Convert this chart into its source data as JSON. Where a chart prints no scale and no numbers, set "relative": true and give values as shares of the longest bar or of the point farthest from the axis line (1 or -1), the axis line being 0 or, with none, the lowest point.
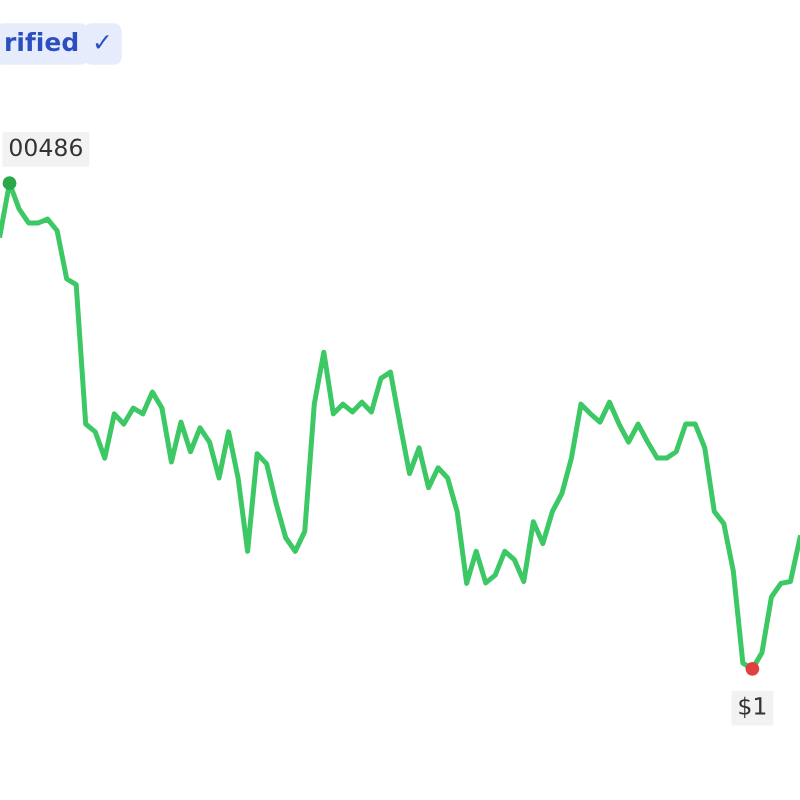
{
  "chart_data": {
    "type": "line",
    "relative": true,
    "categories": [
      null,
      null,
      null,
      null,
      null,
      null,
      null,
      null,
      null,
      null,
      null,
      null,
      null,
      null,
      null,
      null,
      null,
      null,
      null,
      null,
      null,
      null,
      null,
      null,
      null,
      null,
      null,
      null,
      null,
      null,
      null,
      null,
      null,
      null,
      null,
      null,
      null,
      null,
      null,
      null,
      null,
      null,
      null,
      null,
      null,
      null,
      null,
      null,
      null,
      null,
      null,
      null,
      null,
      null,
      null,
      null,
      null,
      null,
      null,
      null,
      null,
      null,
      null,
      null,
      null,
      null,
      null,
      null,
      null,
      null,
      null,
      null,
      null,
      null,
      null,
      null,
      null,
      null,
      null,
      null,
      null,
      null,
      null,
      null,
      null
    ],
    "series": [
      {
        "color": "#3cc864",
        "values": [
          0.893,
          1,
          0.947,
          0.918,
          0.918,
          0.926,
          0.902,
          0.803,
          0.791,
          0.504,
          0.488,
          0.434,
          0.525,
          0.504,
          0.537,
          0.525,
          0.57,
          0.537,
          0.426,
          0.508,
          0.447,
          0.496,
          0.467,
          0.393,
          0.488,
          0.393,
          0.242,
          0.443,
          0.422,
          0.34,
          0.27,
          0.242,
          0.283,
          0.545,
          0.652,
          0.525,
          0.545,
          0.529,
          0.549,
          0.529,
          0.598,
          0.611,
          0.504,
          0.402,
          0.455,
          0.373,
          0.414,
          0.393,
          0.324,
          0.176,
          0.242,
          0.177,
          0.193,
          0.242,
          0.225,
          0.18,
          0.303,
          0.258,
          0.324,
          0.361,
          0.434,
          0.545,
          0.525,
          0.508,
          0.549,
          0.504,
          0.467,
          0.504,
          0.467,
          0.434,
          0.434,
          0.447,
          0.504,
          0.504,
          0.455,
          0.324,
          0.299,
          0.201,
          0.012,
          0,
          0.033,
          0.148,
          0.176,
          0.18,
          0.27
        ]
      }
    ],
    "annotations": [
      "rified",
      "✓",
      "00486",
      "$1"
    ]
  }
}
